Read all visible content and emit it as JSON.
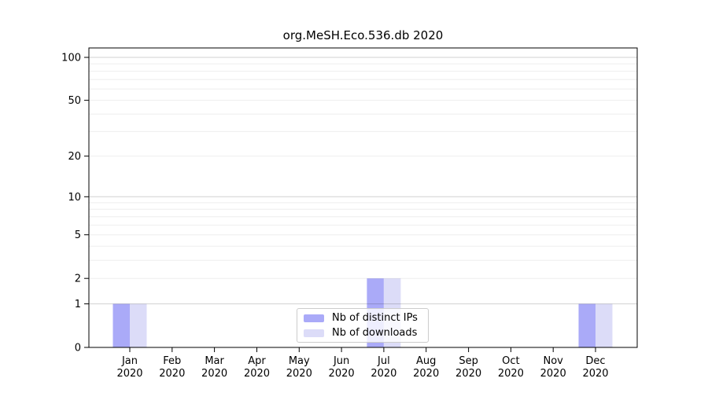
{
  "chart_data": {
    "type": "bar",
    "title": "org.MeSH.Eco.536.db 2020",
    "x_tick_months": [
      "Jan",
      "Feb",
      "Mar",
      "Apr",
      "May",
      "Jun",
      "Jul",
      "Aug",
      "Sep",
      "Oct",
      "Nov",
      "Dec"
    ],
    "x_tick_year": "2020",
    "series": [
      {
        "name": "Nb of distinct IPs",
        "color": "#aaaaf8",
        "values": [
          1,
          0,
          0,
          0,
          0,
          0,
          2,
          0,
          0,
          0,
          0,
          1
        ]
      },
      {
        "name": "Nb of downloads",
        "color": "#dcdcf8",
        "values": [
          1,
          0,
          0,
          0,
          0,
          0,
          2,
          0,
          0,
          0,
          0,
          1
        ]
      }
    ],
    "y_axis": {
      "scale": "log10(v+1)",
      "tick_labels": [
        100,
        50,
        20,
        10,
        5,
        2,
        1,
        0
      ],
      "major_gridlines": [
        1,
        10,
        100
      ],
      "minor_gridlines": [
        2,
        3,
        4,
        5,
        6,
        7,
        8,
        9,
        20,
        30,
        40,
        50,
        60,
        70,
        80,
        90
      ],
      "ylim": [
        0,
        116
      ]
    },
    "legend_position": "bottom-center",
    "grid": true
  }
}
